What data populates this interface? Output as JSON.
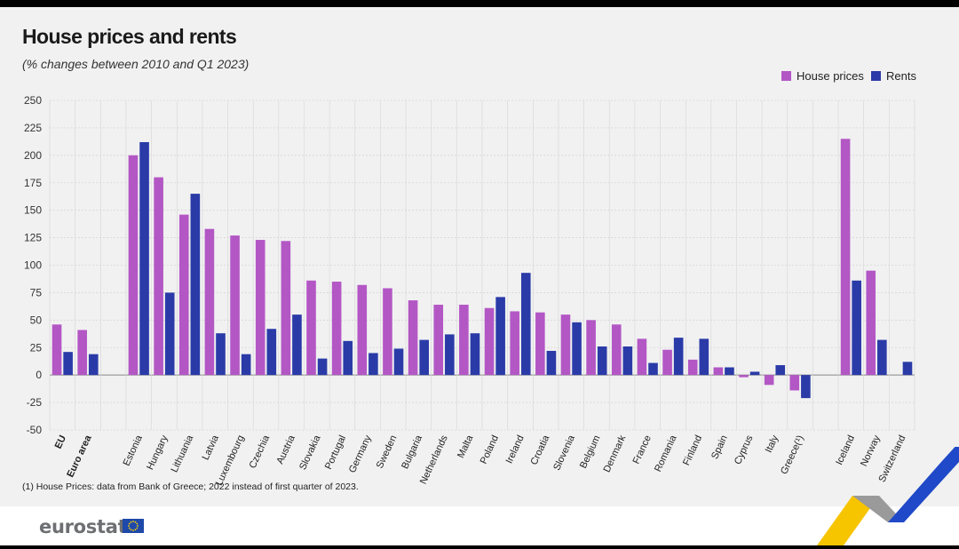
{
  "title": "House prices and rents",
  "subtitle": "(% changes between 2010 and Q1 2023)",
  "footnote": "(1) House Prices: data from Bank of Greece; 2022 instead of first quarter of 2023.",
  "brand": {
    "logo_text": "eurostat"
  },
  "colors": {
    "house": "#b357c5",
    "rents": "#2a3ba8",
    "grid": "#d6d6d6",
    "zero": "#888888"
  },
  "chart_data": {
    "type": "bar",
    "title": "House prices and rents",
    "subtitle": "(% changes between 2010 and Q1 2023)",
    "xlabel": "",
    "ylabel": "",
    "ylim": [
      -50,
      250
    ],
    "yticks": [
      -50,
      -25,
      0,
      25,
      50,
      75,
      100,
      125,
      150,
      175,
      200,
      225,
      250
    ],
    "grid": true,
    "legend_position": "top-right",
    "categories": [
      "EU",
      "Euro area",
      "",
      "Estonia",
      "Hungary",
      "Lithuania",
      "Latvia",
      "Luxembourg",
      "Czechia",
      "Austria",
      "Slovakia",
      "Portugal",
      "Germany",
      "Sweden",
      "Bulgaria",
      "Netherlands",
      "Malta",
      "Poland",
      "Ireland",
      "Croatia",
      "Slovenia",
      "Belgium",
      "Denmark",
      "France",
      "Romania",
      "Finland",
      "Spain",
      "Cyprus",
      "Italy",
      "Greece(¹)",
      "",
      "Iceland",
      "Norway",
      "Switzerland"
    ],
    "bold_categories": [
      "EU",
      "Euro area"
    ],
    "series": [
      {
        "name": "House prices",
        "values": [
          46,
          41,
          null,
          200,
          180,
          146,
          133,
          127,
          123,
          122,
          86,
          85,
          82,
          79,
          68,
          64,
          64,
          61,
          58,
          57,
          55,
          50,
          46,
          33,
          23,
          14,
          7,
          -2,
          -9,
          -14,
          null,
          215,
          95,
          null
        ]
      },
      {
        "name": "Rents",
        "values": [
          21,
          19,
          null,
          212,
          75,
          165,
          38,
          19,
          42,
          55,
          15,
          31,
          20,
          24,
          32,
          37,
          38,
          71,
          93,
          22,
          48,
          26,
          26,
          11,
          34,
          33,
          7,
          3,
          9,
          -21,
          null,
          86,
          32,
          12
        ]
      }
    ]
  }
}
